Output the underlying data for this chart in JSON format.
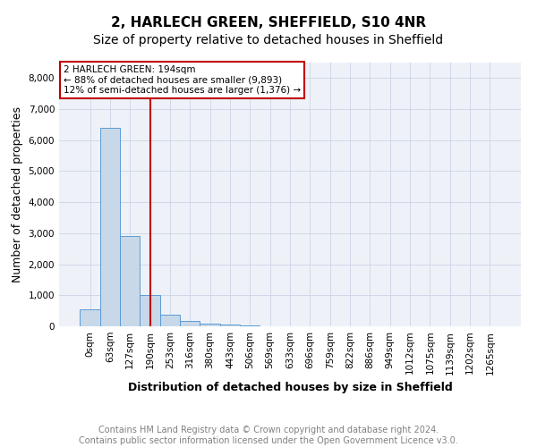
{
  "title": "2, HARLECH GREEN, SHEFFIELD, S10 4NR",
  "subtitle": "Size of property relative to detached houses in Sheffield",
  "xlabel": "Distribution of detached houses by size in Sheffield",
  "ylabel": "Number of detached properties",
  "footer_line1": "Contains HM Land Registry data © Crown copyright and database right 2024.",
  "footer_line2": "Contains public sector information licensed under the Open Government Licence v3.0.",
  "categories": [
    "0sqm",
    "63sqm",
    "127sqm",
    "190sqm",
    "253sqm",
    "316sqm",
    "380sqm",
    "443sqm",
    "506sqm",
    "569sqm",
    "633sqm",
    "696sqm",
    "759sqm",
    "822sqm",
    "886sqm",
    "949sqm",
    "1012sqm",
    "1075sqm",
    "1139sqm",
    "1202sqm",
    "1265sqm"
  ],
  "values": [
    560,
    6400,
    2900,
    1000,
    380,
    170,
    100,
    60,
    30,
    0,
    0,
    0,
    0,
    0,
    0,
    0,
    0,
    0,
    0,
    0,
    0
  ],
  "bar_color": "#c8d8e8",
  "bar_edge_color": "#5b9bd5",
  "vline_x": 3,
  "vline_color": "#c00000",
  "annotation_text": "2 HARLECH GREEN: 194sqm\n← 88% of detached houses are smaller (9,893)\n12% of semi-detached houses are larger (1,376) →",
  "annotation_box_color": "#c00000",
  "ylim": [
    0,
    8500
  ],
  "yticks": [
    0,
    1000,
    2000,
    3000,
    4000,
    5000,
    6000,
    7000,
    8000
  ],
  "grid_color": "#d0d8e8",
  "bg_color": "#eef2f8",
  "title_fontsize": 11,
  "subtitle_fontsize": 10,
  "label_fontsize": 9,
  "tick_fontsize": 7.5,
  "footer_fontsize": 7
}
